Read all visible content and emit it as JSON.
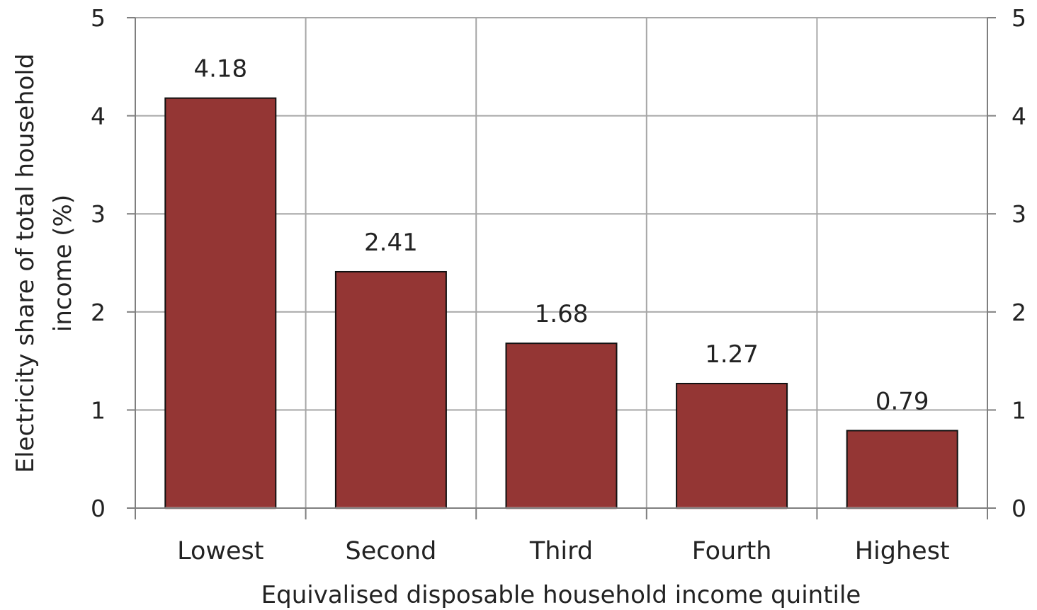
{
  "chart_data": {
    "type": "bar",
    "title": "",
    "categories": [
      "Lowest",
      "Second",
      "Third",
      "Fourth",
      "Highest"
    ],
    "values": [
      4.18,
      2.41,
      1.68,
      1.27,
      0.79
    ],
    "data_labels": [
      "4.18",
      "2.41",
      "1.68",
      "1.27",
      "0.79"
    ],
    "xlabel": "Equivalised disposable household income quintile",
    "ylabel_lines": [
      "Electricity share of total household",
      "income (%)"
    ],
    "ylim": [
      0,
      5
    ],
    "yticks": [
      "0",
      "1",
      "2",
      "3",
      "4",
      "5"
    ],
    "secondary_axis": true,
    "grid": true,
    "legend": "none",
    "colors": {
      "bar_fill": "#943634",
      "bar_stroke": "#111111",
      "grid": "#a6a6a6",
      "axis": "#7f7f7f",
      "baseline_highlight": "#c9a09f"
    }
  }
}
